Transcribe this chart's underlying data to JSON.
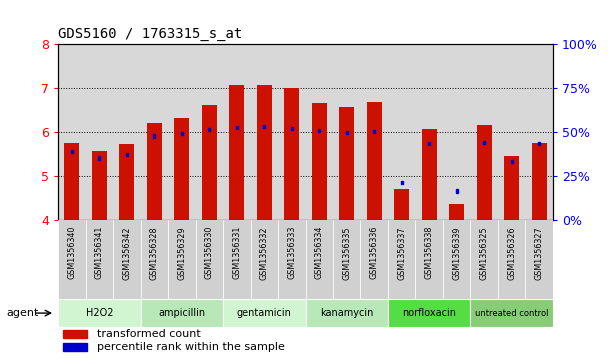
{
  "title": "GDS5160 / 1763315_s_at",
  "samples": [
    "GSM1356340",
    "GSM1356341",
    "GSM1356342",
    "GSM1356328",
    "GSM1356329",
    "GSM1356330",
    "GSM1356331",
    "GSM1356332",
    "GSM1356333",
    "GSM1356334",
    "GSM1356335",
    "GSM1356336",
    "GSM1356337",
    "GSM1356338",
    "GSM1356339",
    "GSM1356325",
    "GSM1356326",
    "GSM1356327"
  ],
  "red_values": [
    5.75,
    5.55,
    5.72,
    6.2,
    6.3,
    6.6,
    7.05,
    7.05,
    7.0,
    6.65,
    6.55,
    6.67,
    4.7,
    6.05,
    4.35,
    6.15,
    5.45,
    5.75
  ],
  "blue_values": [
    5.55,
    5.4,
    5.47,
    5.9,
    5.95,
    6.04,
    6.1,
    6.12,
    6.07,
    6.02,
    5.98,
    6.0,
    4.84,
    5.72,
    4.65,
    5.75,
    5.32,
    5.72
  ],
  "y_min": 4.0,
  "y_max": 8.0,
  "y_ticks": [
    4,
    5,
    6,
    7,
    8
  ],
  "right_y_ticks": [
    0,
    25,
    50,
    75,
    100
  ],
  "right_y_labels": [
    "0%",
    "25%",
    "50%",
    "75%",
    "100%"
  ],
  "groups": [
    {
      "label": "H2O2",
      "start": 0,
      "end": 3,
      "color": "#d0f5d0"
    },
    {
      "label": "ampicillin",
      "start": 3,
      "end": 6,
      "color": "#b8e8b8"
    },
    {
      "label": "gentamicin",
      "start": 6,
      "end": 9,
      "color": "#d0f5d0"
    },
    {
      "label": "kanamycin",
      "start": 9,
      "end": 12,
      "color": "#b8e8b8"
    },
    {
      "label": "norfloxacin",
      "start": 12,
      "end": 15,
      "color": "#55dd44"
    },
    {
      "label": "untreated control",
      "start": 15,
      "end": 18,
      "color": "#88cc77"
    }
  ],
  "bar_color": "#cc1100",
  "blue_color": "#0000cc",
  "bar_width": 0.55,
  "plot_bg_color": "#d8d8d8",
  "tick_bg_color": "#d0d0d0",
  "legend_items": [
    {
      "label": "transformed count",
      "color": "#cc1100"
    },
    {
      "label": "percentile rank within the sample",
      "color": "#0000cc"
    }
  ]
}
